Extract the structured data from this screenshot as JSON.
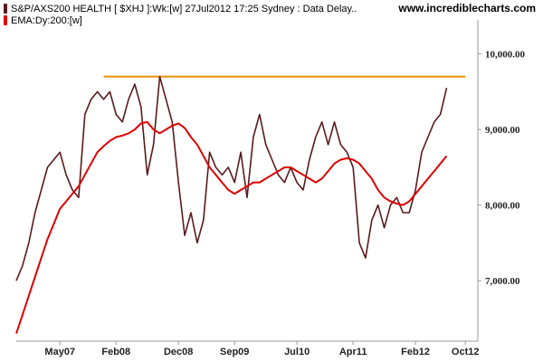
{
  "header": {
    "series_label": "S&P/AXS200 HEALTH [ $XHJ ]:Wk:[w]  27Jul2012 17:25 Sydney : Data Delay..",
    "ema_label": "EMA:Dy:200:[w]",
    "brand": "www.incrediblecharts.com"
  },
  "colors": {
    "price": "#5a1a1a",
    "ema": "#dd0000",
    "resistance": "#e8900a",
    "axis": "#999999"
  },
  "chart_data": {
    "type": "line",
    "title": "",
    "xlabel": "",
    "ylabel": "",
    "ylim": [
      6200,
      10450
    ],
    "xlim": [
      "2006-10",
      "2012-12"
    ],
    "x_ticks": [
      {
        "label": "May07",
        "x": "2007-05"
      },
      {
        "label": "Feb08",
        "x": "2008-02"
      },
      {
        "label": "Dec08",
        "x": "2008-12"
      },
      {
        "label": "Sep09",
        "x": "2009-09"
      },
      {
        "label": "Jul10",
        "x": "2010-07"
      },
      {
        "label": "Apr11",
        "x": "2011-04"
      },
      {
        "label": "Feb12",
        "x": "2012-02"
      },
      {
        "label": "Oct12",
        "x": "2012-10"
      }
    ],
    "y_ticks": [
      {
        "label": "7,000.00",
        "value": 7000
      },
      {
        "label": "8,000.00",
        "value": 8000
      },
      {
        "label": "9,000.00",
        "value": 9000
      },
      {
        "label": "10,000.00",
        "value": 10000
      }
    ],
    "reference_lines": [
      {
        "value": 9700,
        "from": "2007-12",
        "to": "2012-10"
      }
    ],
    "series": [
      {
        "role": "price",
        "x": [
          "2006-10",
          "2006-11",
          "2006-12",
          "2007-01",
          "2007-02",
          "2007-03",
          "2007-04",
          "2007-05",
          "2007-06",
          "2007-07",
          "2007-08",
          "2007-09",
          "2007-10",
          "2007-11",
          "2007-12",
          "2008-01",
          "2008-02",
          "2008-03",
          "2008-04",
          "2008-05",
          "2008-06",
          "2008-07",
          "2008-08",
          "2008-09",
          "2008-10",
          "2008-11",
          "2008-12",
          "2009-01",
          "2009-02",
          "2009-03",
          "2009-04",
          "2009-05",
          "2009-06",
          "2009-07",
          "2009-08",
          "2009-09",
          "2009-10",
          "2009-11",
          "2009-12",
          "2010-01",
          "2010-02",
          "2010-03",
          "2010-04",
          "2010-05",
          "2010-06",
          "2010-07",
          "2010-08",
          "2010-09",
          "2010-10",
          "2010-11",
          "2010-12",
          "2011-01",
          "2011-02",
          "2011-03",
          "2011-04",
          "2011-05",
          "2011-06",
          "2011-07",
          "2011-08",
          "2011-09",
          "2011-10",
          "2011-11",
          "2011-12",
          "2012-01",
          "2012-02",
          "2012-03",
          "2012-04",
          "2012-05",
          "2012-06",
          "2012-07"
        ],
        "values": [
          7000,
          7200,
          7500,
          7900,
          8200,
          8500,
          8600,
          8700,
          8400,
          8200,
          8100,
          9200,
          9400,
          9500,
          9400,
          9500,
          9200,
          9100,
          9400,
          9600,
          9300,
          8400,
          8800,
          9700,
          9400,
          9100,
          8300,
          7600,
          7900,
          7500,
          7800,
          8700,
          8500,
          8400,
          8500,
          8300,
          8700,
          8100,
          8900,
          9200,
          8800,
          8600,
          8400,
          8300,
          8500,
          8300,
          8200,
          8600,
          8900,
          9100,
          8800,
          9100,
          8800,
          8700,
          8500,
          7500,
          7300,
          7800,
          8000,
          7700,
          8000,
          8100,
          7900,
          7900,
          8200,
          8700,
          8900,
          9100,
          9200,
          9550
        ]
      },
      {
        "role": "ema",
        "x": [
          "2006-10",
          "2006-11",
          "2006-12",
          "2007-01",
          "2007-02",
          "2007-03",
          "2007-04",
          "2007-05",
          "2007-06",
          "2007-07",
          "2007-08",
          "2007-09",
          "2007-10",
          "2007-11",
          "2007-12",
          "2008-01",
          "2008-02",
          "2008-03",
          "2008-04",
          "2008-05",
          "2008-06",
          "2008-07",
          "2008-08",
          "2008-09",
          "2008-10",
          "2008-11",
          "2008-12",
          "2009-01",
          "2009-02",
          "2009-03",
          "2009-04",
          "2009-05",
          "2009-06",
          "2009-07",
          "2009-08",
          "2009-09",
          "2009-10",
          "2009-11",
          "2009-12",
          "2010-01",
          "2010-02",
          "2010-03",
          "2010-04",
          "2010-05",
          "2010-06",
          "2010-07",
          "2010-08",
          "2010-09",
          "2010-10",
          "2010-11",
          "2010-12",
          "2011-01",
          "2011-02",
          "2011-03",
          "2011-04",
          "2011-05",
          "2011-06",
          "2011-07",
          "2011-08",
          "2011-09",
          "2011-10",
          "2011-11",
          "2011-12",
          "2012-01",
          "2012-02",
          "2012-03",
          "2012-04",
          "2012-05",
          "2012-06",
          "2012-07"
        ],
        "values": [
          6300,
          6550,
          6800,
          7050,
          7300,
          7550,
          7750,
          7950,
          8050,
          8150,
          8250,
          8400,
          8550,
          8700,
          8780,
          8850,
          8900,
          8920,
          8950,
          9000,
          9080,
          9100,
          9000,
          8950,
          9000,
          9050,
          9080,
          9020,
          8900,
          8800,
          8650,
          8500,
          8400,
          8300,
          8200,
          8150,
          8200,
          8250,
          8300,
          8300,
          8350,
          8400,
          8450,
          8500,
          8500,
          8450,
          8400,
          8350,
          8300,
          8350,
          8450,
          8550,
          8600,
          8620,
          8600,
          8550,
          8450,
          8350,
          8200,
          8100,
          8050,
          8020,
          8000,
          8050,
          8150,
          8250,
          8350,
          8450,
          8550,
          8650
        ]
      }
    ]
  }
}
